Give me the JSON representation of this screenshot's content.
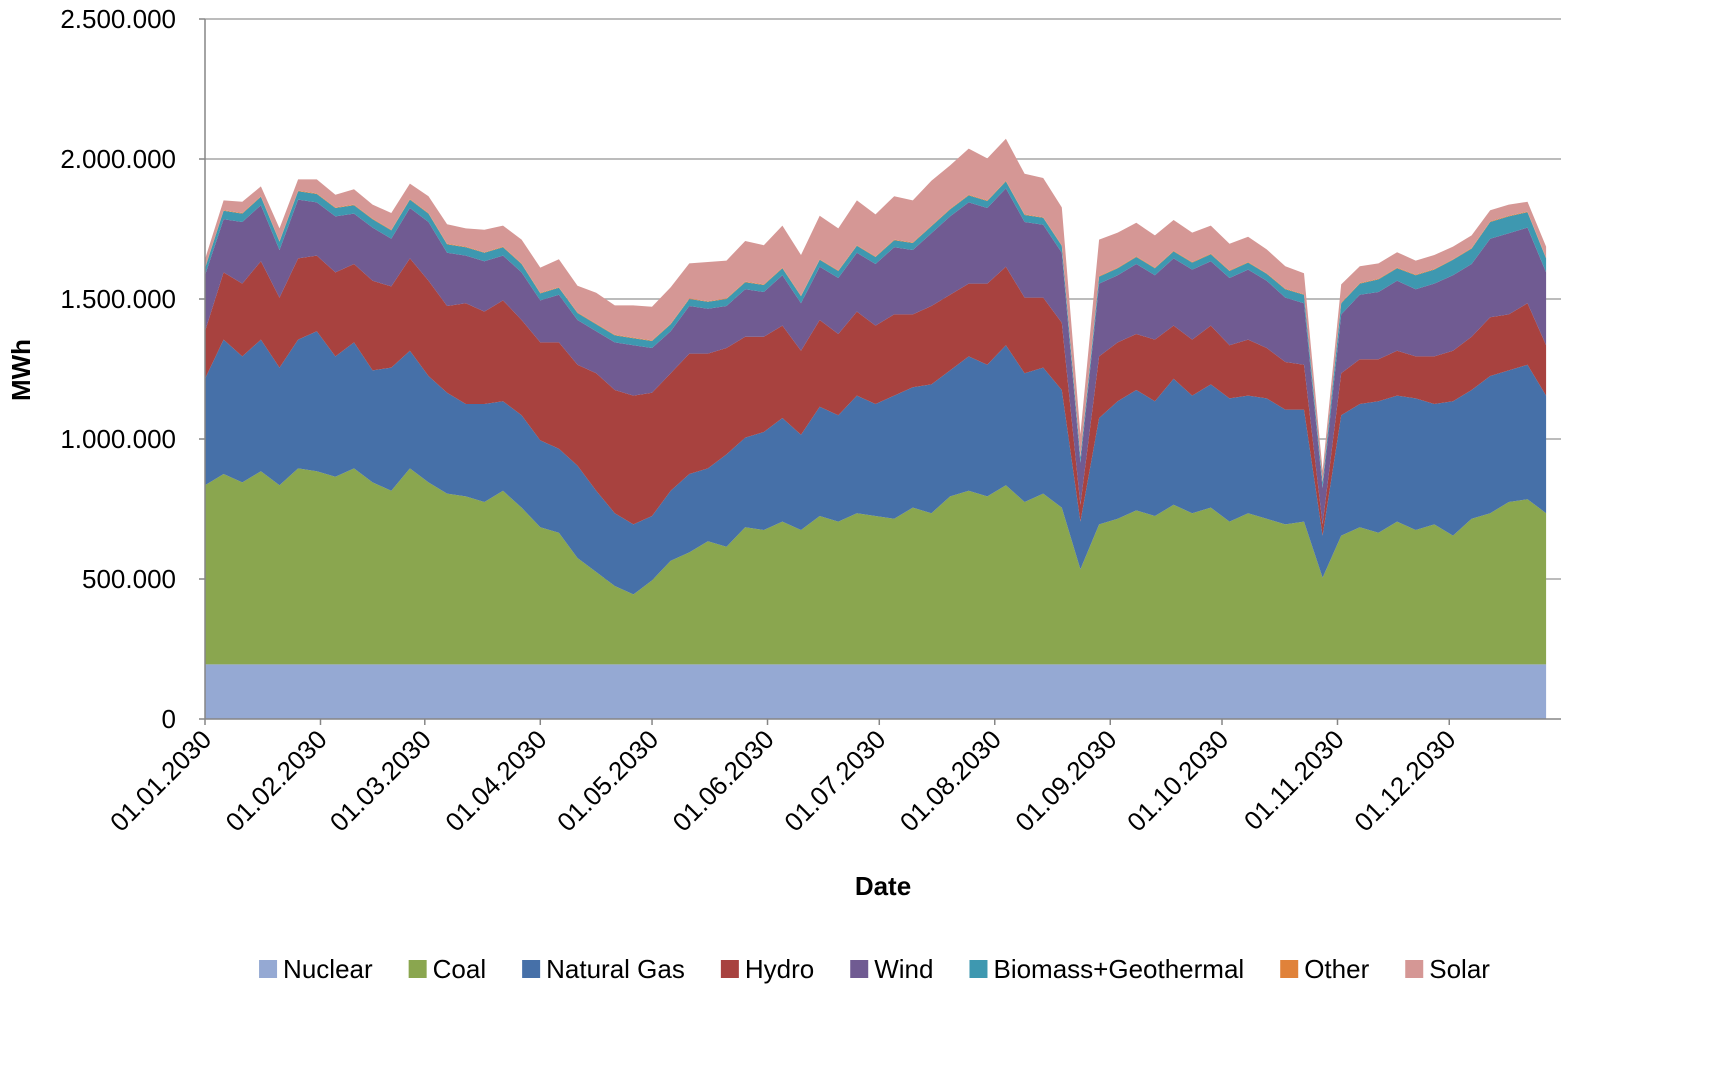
{
  "chart_data": {
    "type": "stacked-area",
    "x_label": "Date",
    "y_label": "MWh",
    "x": [
      "01.01.2030",
      "06.01.2030",
      "11.01.2030",
      "16.01.2030",
      "21.01.2030",
      "26.01.2030",
      "31.01.2030",
      "05.02.2030",
      "10.02.2030",
      "15.02.2030",
      "20.02.2030",
      "25.02.2030",
      "02.03.2030",
      "07.03.2030",
      "12.03.2030",
      "17.03.2030",
      "22.03.2030",
      "27.03.2030",
      "01.04.2030",
      "06.04.2030",
      "11.04.2030",
      "16.04.2030",
      "21.04.2030",
      "26.04.2030",
      "01.05.2030",
      "06.05.2030",
      "11.05.2030",
      "16.05.2030",
      "21.05.2030",
      "26.05.2030",
      "31.05.2030",
      "05.06.2030",
      "10.06.2030",
      "15.06.2030",
      "20.06.2030",
      "25.06.2030",
      "30.06.2030",
      "05.07.2030",
      "10.07.2030",
      "15.07.2030",
      "20.07.2030",
      "25.07.2030",
      "30.07.2030",
      "04.08.2030",
      "09.08.2030",
      "14.08.2030",
      "19.08.2030",
      "24.08.2030",
      "29.08.2030",
      "03.09.2030",
      "08.09.2030",
      "13.09.2030",
      "18.09.2030",
      "23.09.2030",
      "28.09.2030",
      "03.10.2030",
      "08.10.2030",
      "13.10.2030",
      "18.10.2030",
      "23.10.2030",
      "28.10.2030",
      "02.11.2030",
      "07.11.2030",
      "12.11.2030",
      "17.11.2030",
      "22.11.2030",
      "27.11.2030",
      "02.12.2030",
      "07.12.2030",
      "12.12.2030",
      "17.12.2030",
      "22.12.2030",
      "27.12.2030"
    ],
    "xlim": [
      "01.01.2030",
      "31.12.2030"
    ],
    "xticks": [
      "01.01.2030",
      "01.02.2030",
      "01.03.2030",
      "01.04.2030",
      "01.05.2030",
      "01.06.2030",
      "01.07.2030",
      "01.08.2030",
      "01.09.2030",
      "01.10.2030",
      "01.11.2030",
      "01.12.2030"
    ],
    "ylim": [
      0,
      2500000
    ],
    "yticks": [
      0,
      {
        "value": 500000,
        "label": "500.000"
      },
      {
        "value": 1000000,
        "label": "1.000.000"
      },
      {
        "value": 1500000,
        "label": "1.500.000"
      },
      {
        "value": 2000000,
        "label": "2.000.000"
      },
      {
        "value": 2500000,
        "label": "2.500.000"
      }
    ],
    "grid": true,
    "legend": "bottom",
    "series": [
      {
        "name": "Nuclear",
        "color": "#95a9d3",
        "values": [
          195000,
          195000,
          195000,
          195000,
          195000,
          195000,
          195000,
          195000,
          195000,
          195000,
          195000,
          195000,
          195000,
          195000,
          195000,
          195000,
          195000,
          195000,
          195000,
          195000,
          195000,
          195000,
          195000,
          195000,
          195000,
          195000,
          195000,
          195000,
          195000,
          195000,
          195000,
          195000,
          195000,
          195000,
          195000,
          195000,
          195000,
          195000,
          195000,
          195000,
          195000,
          195000,
          195000,
          195000,
          195000,
          195000,
          195000,
          195000,
          195000,
          195000,
          195000,
          195000,
          195000,
          195000,
          195000,
          195000,
          195000,
          195000,
          195000,
          195000,
          195000,
          195000,
          195000,
          195000,
          195000,
          195000,
          195000,
          195000,
          195000,
          195000,
          195000,
          195000,
          195000
        ]
      },
      {
        "name": "Coal",
        "color": "#8aa64f",
        "values": [
          640000,
          680000,
          650000,
          690000,
          640000,
          700000,
          690000,
          670000,
          700000,
          650000,
          620000,
          700000,
          650000,
          610000,
          600000,
          580000,
          620000,
          560000,
          490000,
          470000,
          380000,
          330000,
          280000,
          250000,
          300000,
          370000,
          400000,
          440000,
          420000,
          490000,
          480000,
          510000,
          480000,
          530000,
          510000,
          540000,
          530000,
          520000,
          560000,
          540000,
          600000,
          620000,
          600000,
          640000,
          580000,
          610000,
          560000,
          340000,
          500000,
          520000,
          550000,
          530000,
          570000,
          540000,
          560000,
          510000,
          540000,
          520000,
          500000,
          510000,
          310000,
          460000,
          490000,
          470000,
          510000,
          480000,
          500000,
          460000,
          520000,
          540000,
          580000,
          590000,
          540000
        ]
      },
      {
        "name": "Natural Gas",
        "color": "#4670a8",
        "values": [
          380000,
          480000,
          450000,
          470000,
          420000,
          460000,
          500000,
          430000,
          450000,
          400000,
          440000,
          420000,
          380000,
          360000,
          330000,
          350000,
          320000,
          330000,
          310000,
          300000,
          330000,
          290000,
          260000,
          250000,
          230000,
          250000,
          280000,
          260000,
          330000,
          320000,
          350000,
          370000,
          340000,
          390000,
          380000,
          420000,
          400000,
          440000,
          430000,
          460000,
          450000,
          480000,
          470000,
          500000,
          460000,
          450000,
          420000,
          170000,
          380000,
          420000,
          430000,
          410000,
          450000,
          420000,
          440000,
          440000,
          420000,
          430000,
          410000,
          400000,
          150000,
          430000,
          440000,
          470000,
          450000,
          470000,
          430000,
          480000,
          460000,
          490000,
          470000,
          480000,
          420000
        ]
      },
      {
        "name": "Hydro",
        "color": "#a8423f",
        "values": [
          170000,
          240000,
          260000,
          280000,
          250000,
          290000,
          270000,
          300000,
          280000,
          320000,
          290000,
          330000,
          340000,
          310000,
          360000,
          330000,
          360000,
          340000,
          350000,
          380000,
          360000,
          420000,
          440000,
          460000,
          440000,
          420000,
          430000,
          410000,
          380000,
          360000,
          340000,
          330000,
          300000,
          310000,
          290000,
          300000,
          280000,
          290000,
          260000,
          280000,
          270000,
          260000,
          290000,
          280000,
          270000,
          250000,
          240000,
          60000,
          220000,
          210000,
          200000,
          220000,
          190000,
          200000,
          210000,
          190000,
          200000,
          180000,
          170000,
          160000,
          40000,
          150000,
          160000,
          150000,
          160000,
          150000,
          170000,
          180000,
          190000,
          210000,
          200000,
          220000,
          180000
        ]
      },
      {
        "name": "Wind",
        "color": "#705b92",
        "values": [
          200000,
          190000,
          220000,
          200000,
          170000,
          210000,
          190000,
          200000,
          180000,
          190000,
          170000,
          180000,
          210000,
          190000,
          170000,
          180000,
          160000,
          170000,
          150000,
          170000,
          160000,
          150000,
          170000,
          180000,
          160000,
          150000,
          170000,
          160000,
          150000,
          170000,
          160000,
          180000,
          170000,
          190000,
          200000,
          210000,
          220000,
          240000,
          230000,
          260000,
          280000,
          290000,
          270000,
          280000,
          270000,
          260000,
          250000,
          150000,
          260000,
          240000,
          250000,
          230000,
          240000,
          250000,
          230000,
          240000,
          250000,
          240000,
          230000,
          220000,
          130000,
          210000,
          230000,
          240000,
          250000,
          240000,
          260000,
          270000,
          260000,
          280000,
          290000,
          270000,
          260000
        ]
      },
      {
        "name": "Biomass+Geothermal",
        "color": "#3e98b0",
        "values": [
          25000,
          30000,
          30000,
          30000,
          30000,
          30000,
          30000,
          30000,
          30000,
          30000,
          30000,
          30000,
          30000,
          30000,
          30000,
          30000,
          30000,
          30000,
          25000,
          25000,
          25000,
          25000,
          25000,
          25000,
          25000,
          25000,
          25000,
          25000,
          25000,
          25000,
          25000,
          25000,
          25000,
          25000,
          25000,
          25000,
          25000,
          25000,
          25000,
          25000,
          25000,
          25000,
          25000,
          25000,
          25000,
          25000,
          25000,
          20000,
          25000,
          25000,
          25000,
          25000,
          25000,
          25000,
          25000,
          25000,
          25000,
          25000,
          30000,
          30000,
          20000,
          40000,
          40000,
          45000,
          45000,
          50000,
          50000,
          55000,
          55000,
          60000,
          60000,
          55000,
          50000
        ]
      },
      {
        "name": "Other",
        "color": "#e0823a",
        "values": [
          2000,
          2000,
          2000,
          2000,
          2000,
          2000,
          2000,
          2000,
          2000,
          2000,
          2000,
          2000,
          2000,
          2000,
          2000,
          2000,
          2000,
          2000,
          2000,
          2000,
          2000,
          2000,
          2000,
          2000,
          2000,
          2000,
          2000,
          2000,
          2000,
          2000,
          2000,
          2000,
          2000,
          2000,
          2000,
          2000,
          2000,
          2000,
          2000,
          2000,
          2000,
          2000,
          2000,
          2000,
          2000,
          2000,
          2000,
          2000,
          2000,
          2000,
          2000,
          2000,
          2000,
          2000,
          2000,
          2000,
          2000,
          2000,
          2000,
          2000,
          2000,
          2000,
          2000,
          2000,
          2000,
          2000,
          2000,
          2000,
          2000,
          2000,
          2000,
          2000,
          2000
        ]
      },
      {
        "name": "Solar",
        "color": "#d59795",
        "values": [
          30000,
          35000,
          40000,
          35000,
          45000,
          40000,
          50000,
          45000,
          55000,
          50000,
          60000,
          55000,
          60000,
          70000,
          65000,
          80000,
          75000,
          85000,
          90000,
          100000,
          95000,
          110000,
          105000,
          115000,
          120000,
          130000,
          125000,
          140000,
          135000,
          145000,
          140000,
          150000,
          145000,
          155000,
          150000,
          160000,
          150000,
          155000,
          150000,
          160000,
          155000,
          165000,
          150000,
          150000,
          145000,
          140000,
          135000,
          80000,
          130000,
          125000,
          120000,
          115000,
          110000,
          105000,
          100000,
          95000,
          90000,
          85000,
          80000,
          75000,
          40000,
          65000,
          60000,
          55000,
          55000,
          50000,
          50000,
          45000,
          45000,
          40000,
          40000,
          35000,
          40000
        ]
      }
    ]
  }
}
